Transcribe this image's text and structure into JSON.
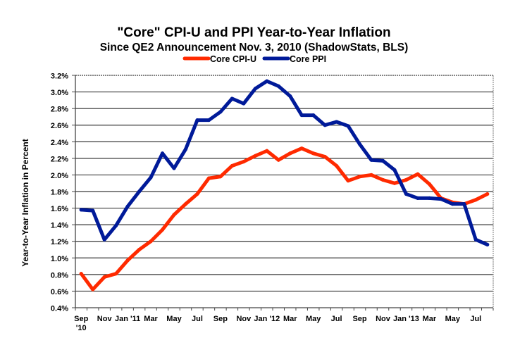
{
  "chart_data": {
    "type": "line",
    "title": "\"Core\" CPI-U and PPI Year-to-Year Inflation",
    "subtitle": "Since QE2 Announcement Nov. 3, 2010 (ShadowStats, BLS)",
    "xlabel": "",
    "ylabel": "Year-to-Year Inflation in Percent",
    "ylim": [
      0.4,
      3.2
    ],
    "yticks": [
      0.4,
      0.6,
      0.8,
      1.0,
      1.2,
      1.4,
      1.6,
      1.8,
      2.0,
      2.2,
      2.4,
      2.6,
      2.8,
      3.0,
      3.2
    ],
    "ytick_labels": [
      "0.4%",
      "0.6%",
      "0.8%",
      "1.0%",
      "1.2%",
      "1.4%",
      "1.6%",
      "1.8%",
      "2.0%",
      "2.2%",
      "2.4%",
      "2.6%",
      "2.8%",
      "3.0%",
      "3.2%"
    ],
    "grid": true,
    "legend_position": "top-center",
    "categories": [
      "Sep 2010",
      "Oct 2010",
      "Nov 2010",
      "Dec 2010",
      "Jan 2011",
      "Feb 2011",
      "Mar 2011",
      "Apr 2011",
      "May 2011",
      "Jun 2011",
      "Jul 2011",
      "Aug 2011",
      "Sep 2011",
      "Oct 2011",
      "Nov 2011",
      "Dec 2011",
      "Jan 2012",
      "Feb 2012",
      "Mar 2012",
      "Apr 2012",
      "May 2012",
      "Jun 2012",
      "Jul 2012",
      "Aug 2012",
      "Sep 2012",
      "Oct 2012",
      "Nov 2012",
      "Dec 2012",
      "Jan 2013",
      "Feb 2013",
      "Mar 2013",
      "Apr 2013",
      "May 2013",
      "Jun 2013",
      "Jul 2013",
      "Aug 2013"
    ],
    "xtick_labels": [
      {
        "index": 0,
        "lines": [
          "Sep",
          "'10"
        ]
      },
      {
        "index": 2,
        "lines": [
          "Nov"
        ]
      },
      {
        "index": 4,
        "lines": [
          "Jan '11"
        ]
      },
      {
        "index": 6,
        "lines": [
          "Mar"
        ]
      },
      {
        "index": 8,
        "lines": [
          "May"
        ]
      },
      {
        "index": 10,
        "lines": [
          "Jul"
        ]
      },
      {
        "index": 12,
        "lines": [
          "Sep"
        ]
      },
      {
        "index": 14,
        "lines": [
          "Nov"
        ]
      },
      {
        "index": 16,
        "lines": [
          "Jan '12"
        ]
      },
      {
        "index": 18,
        "lines": [
          "Mar"
        ]
      },
      {
        "index": 20,
        "lines": [
          "May"
        ]
      },
      {
        "index": 22,
        "lines": [
          "Jul"
        ]
      },
      {
        "index": 24,
        "lines": [
          "Sep"
        ]
      },
      {
        "index": 26,
        "lines": [
          "Nov"
        ]
      },
      {
        "index": 28,
        "lines": [
          "Jan '13"
        ]
      },
      {
        "index": 30,
        "lines": [
          "Mar"
        ]
      },
      {
        "index": 32,
        "lines": [
          "May"
        ]
      },
      {
        "index": 34,
        "lines": [
          "Jul"
        ]
      }
    ],
    "series": [
      {
        "name": "Core CPI-U",
        "color": "#ff2a00",
        "values": [
          0.81,
          0.62,
          0.77,
          0.81,
          0.97,
          1.1,
          1.2,
          1.34,
          1.52,
          1.65,
          1.77,
          1.96,
          1.98,
          2.11,
          2.16,
          2.23,
          2.29,
          2.18,
          2.26,
          2.32,
          2.26,
          2.22,
          2.11,
          1.93,
          1.98,
          2.0,
          1.94,
          1.9,
          1.94,
          2.01,
          1.89,
          1.72,
          1.67,
          1.65,
          1.7,
          1.77
        ]
      },
      {
        "name": "Core PPI",
        "color": "#001a99",
        "values": [
          1.58,
          1.57,
          1.22,
          1.39,
          1.62,
          1.8,
          1.97,
          2.26,
          2.08,
          2.31,
          2.66,
          2.66,
          2.76,
          2.92,
          2.86,
          3.04,
          3.13,
          3.07,
          2.95,
          2.72,
          2.72,
          2.6,
          2.64,
          2.59,
          2.37,
          2.18,
          2.17,
          2.06,
          1.77,
          1.72,
          1.72,
          1.71,
          1.65,
          1.65,
          1.22,
          1.16
        ]
      }
    ]
  }
}
